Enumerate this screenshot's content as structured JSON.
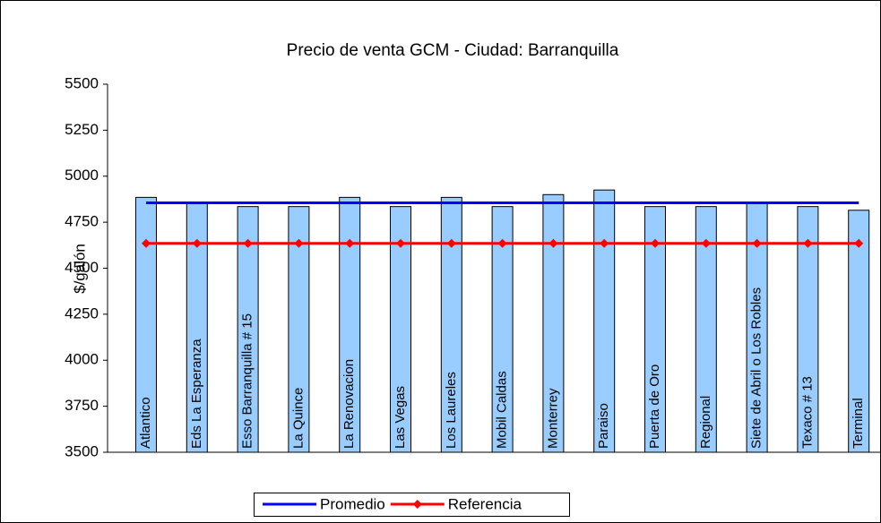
{
  "chart_data": {
    "type": "bar",
    "title": "Precio de venta GCM - Ciudad: Barranquilla",
    "y_label": "$/galón",
    "categories": [
      "Atlantico",
      "Eds La Esperanza",
      "Esso Barranquilla # 15",
      "La Quince",
      "La Renovacion",
      "Las Vegas",
      "Los Laureles",
      "Mobil Caldas",
      "Monterrey",
      "Paraiso",
      "Puerta de Oro",
      "Regional",
      "Siete de Abril o Los Robles",
      "Texaco # 13",
      "Terminal"
    ],
    "values": [
      4885,
      4860,
      4835,
      4835,
      4885,
      4835,
      4885,
      4835,
      4900,
      4925,
      4835,
      4835,
      4855,
      4835,
      4815
    ],
    "color": "#99ccff",
    "series": [
      {
        "name": "Promedio",
        "color": "#0000ff",
        "marker": "none",
        "values": [
          4855,
          4855,
          4855,
          4855,
          4855,
          4855,
          4855,
          4855,
          4855,
          4855,
          4855,
          4855,
          4855,
          4855,
          4855
        ]
      },
      {
        "name": "Referencia",
        "color": "#ff0000",
        "marker": "diamond",
        "values": [
          4635,
          4635,
          4635,
          4635,
          4635,
          4635,
          4635,
          4635,
          4635,
          4635,
          4635,
          4635,
          4635,
          4635,
          4635
        ]
      }
    ],
    "ylim": [
      3500,
      5500
    ],
    "yticks": [
      3500,
      3750,
      4000,
      4250,
      4500,
      4750,
      5000,
      5250,
      5500
    ],
    "grid": false,
    "legend": "bottom"
  }
}
